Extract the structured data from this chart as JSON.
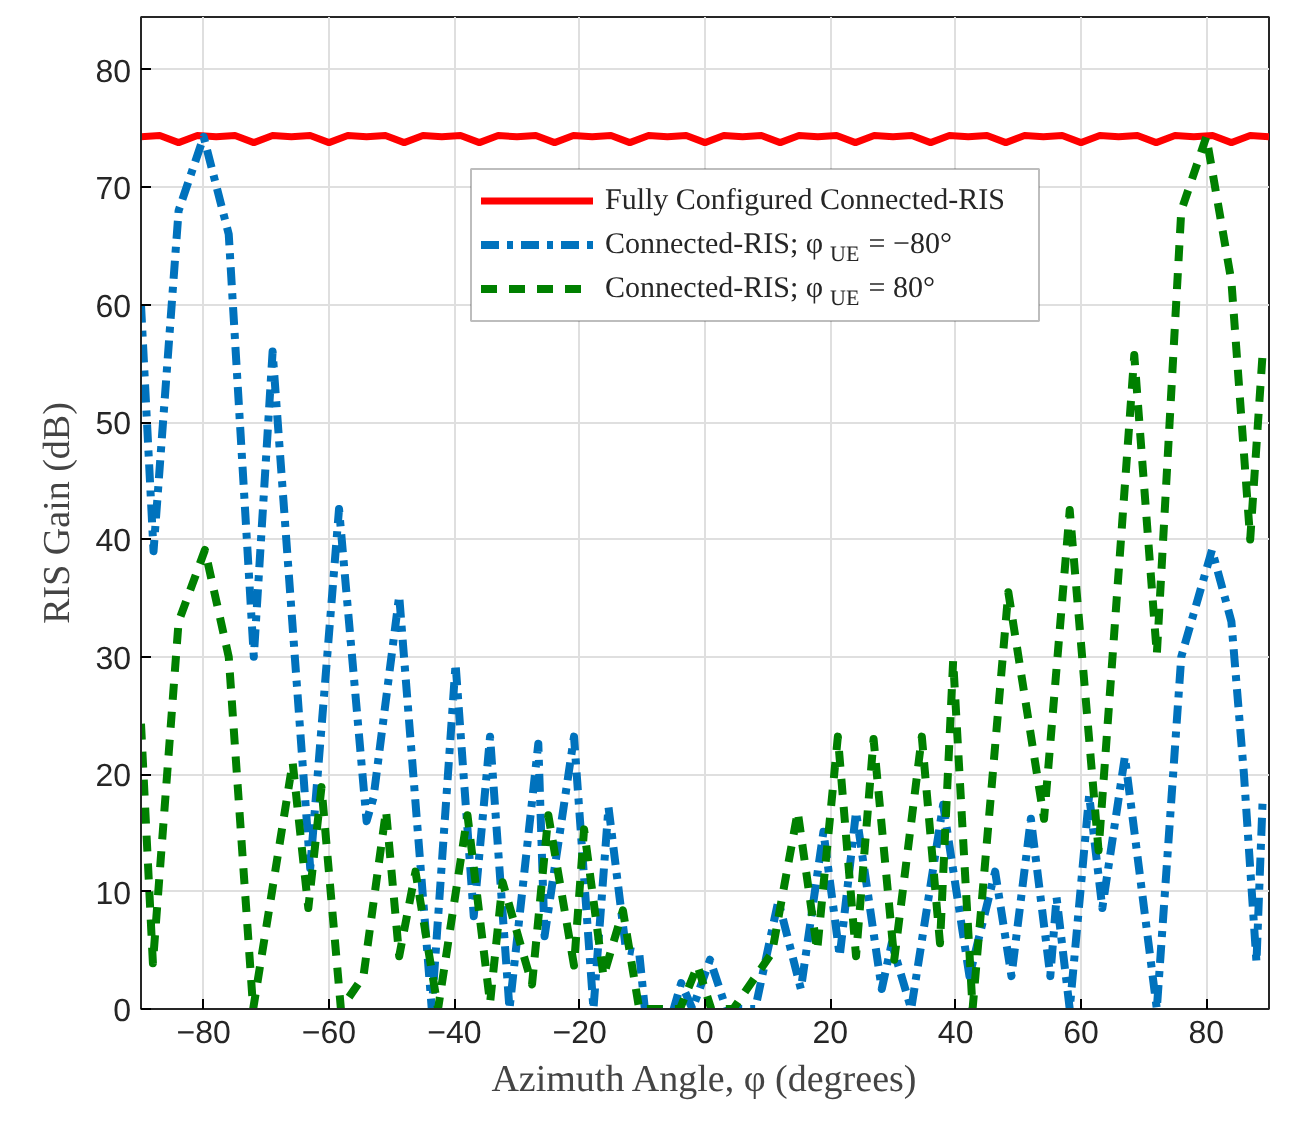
{
  "chart_data": {
    "type": "line",
    "xlabel": "Azimuth Angle, φ (degrees)",
    "ylabel": "RIS Gain (dB)",
    "xlim": [
      -90,
      90
    ],
    "ylim": [
      0,
      84.5
    ],
    "xticks": [
      -80,
      -60,
      -40,
      -20,
      0,
      20,
      40,
      60,
      80
    ],
    "yticks": [
      0,
      10,
      20,
      30,
      40,
      50,
      60,
      70,
      80
    ],
    "grid": true,
    "legend": "top",
    "marker": "none",
    "series": [
      {
        "name": "Fully Configured Connected-RIS",
        "color": "#ff0000",
        "line_style": "solid",
        "x": [
          -90,
          -87,
          -84,
          -81,
          -78,
          -75,
          -72,
          -69,
          -66,
          -63,
          -60,
          -57,
          -54,
          -51,
          -48,
          -45,
          -42,
          -39,
          -36,
          -33,
          -30,
          -27,
          -24,
          -21,
          -18,
          -15,
          -12,
          -9,
          -6,
          -3,
          0,
          3,
          6,
          9,
          12,
          15,
          18,
          21,
          24,
          27,
          30,
          33,
          36,
          39,
          42,
          45,
          48,
          51,
          54,
          57,
          60,
          63,
          66,
          69,
          72,
          75,
          78,
          81,
          84,
          87,
          90
        ],
        "values": [
          74.3,
          74.4,
          73.8,
          74.4,
          74.3,
          74.4,
          73.8,
          74.4,
          74.3,
          74.4,
          73.8,
          74.4,
          74.3,
          74.4,
          73.8,
          74.4,
          74.3,
          74.4,
          73.8,
          74.4,
          74.3,
          74.4,
          73.8,
          74.4,
          74.3,
          74.4,
          73.8,
          74.4,
          74.3,
          74.4,
          73.8,
          74.4,
          74.3,
          74.4,
          73.8,
          74.4,
          74.3,
          74.4,
          73.8,
          74.4,
          74.3,
          74.4,
          73.8,
          74.4,
          74.3,
          74.4,
          73.8,
          74.4,
          74.3,
          74.4,
          73.8,
          74.4,
          74.3,
          74.4,
          73.8,
          74.4,
          74.3,
          74.4,
          73.8,
          74.4,
          74.3
        ]
      },
      {
        "name": "Connected-RIS; φ$_{UE}$ = −80°",
        "color": "#0072bd",
        "line_style": "dashdot",
        "x": [
          -90,
          -88,
          -84,
          -80,
          -76,
          -72,
          -69,
          -63,
          -58.4,
          -54,
          -52.9,
          -48.8,
          -43.6,
          -39.8,
          -36.9,
          -34.3,
          -31.2,
          -26.6,
          -25.6,
          -20.9,
          -17.8,
          -15.4,
          -12.6,
          -10.5,
          -9.6,
          -5,
          -3.8,
          -2,
          0.8,
          3.4,
          8,
          11.7,
          15.3,
          18.9,
          21.5,
          24.1,
          28.2,
          29.8,
          32.9,
          38,
          42.2,
          46.3,
          48.9,
          52,
          55.1,
          56.1,
          58.2,
          61.3,
          63.4,
          67,
          72.1,
          76,
          80.9,
          84,
          86,
          88,
          89
        ],
        "values": [
          60,
          39,
          68,
          74.3,
          66,
          30,
          56,
          12,
          42.6,
          16,
          18,
          35.2,
          0,
          29.4,
          7.9,
          23.2,
          0,
          22.6,
          6.2,
          23.2,
          0,
          17.2,
          5,
          4.8,
          0,
          0,
          2.2,
          0,
          4.2,
          0,
          0,
          9.2,
          1.7,
          15.1,
          4.5,
          16.8,
          1.7,
          5.6,
          0,
          17.4,
          2.8,
          11.7,
          2.8,
          16.2,
          2.8,
          9.5,
          0,
          18.2,
          8.6,
          21.5,
          0,
          30,
          39.1,
          33,
          20,
          4,
          18
        ]
      },
      {
        "name": "Connected-RIS; φ$_{UE}$ = 80°",
        "color": "#008000",
        "line_style": "dashed",
        "x": [
          -90,
          -88.1,
          -84,
          -79.8,
          -76,
          -72.1,
          -65.8,
          -63.3,
          -61.2,
          -58.1,
          -54.5,
          -50.9,
          -48.8,
          -46.2,
          -42.6,
          -37.9,
          -34.3,
          -32.3,
          -27.6,
          -25,
          -20.9,
          -19.3,
          -16.2,
          -13.1,
          -10.5,
          -4,
          -1.2,
          1,
          4.5,
          10.7,
          14.8,
          17.9,
          21.2,
          24.1,
          26.9,
          30.2,
          34.6,
          37.5,
          39.6,
          42.7,
          48.4,
          54.1,
          58.2,
          62.8,
          68.5,
          72.1,
          76,
          80,
          84,
          87,
          89
        ],
        "values": [
          24.3,
          3.9,
          33,
          39.1,
          30,
          0,
          21,
          8.6,
          18.9,
          0,
          2.8,
          16.9,
          4.5,
          11.7,
          0,
          16.5,
          0.5,
          10.8,
          2.1,
          16.5,
          3.7,
          15.3,
          2.8,
          8.4,
          0,
          0,
          3.7,
          0,
          0,
          4.8,
          16.8,
          5,
          23.2,
          4.5,
          23,
          4.2,
          23.2,
          5.6,
          29.7,
          0,
          35.5,
          16.2,
          42.5,
          13.5,
          55.7,
          30.2,
          68,
          74.3,
          62,
          40,
          56
        ]
      }
    ]
  }
}
